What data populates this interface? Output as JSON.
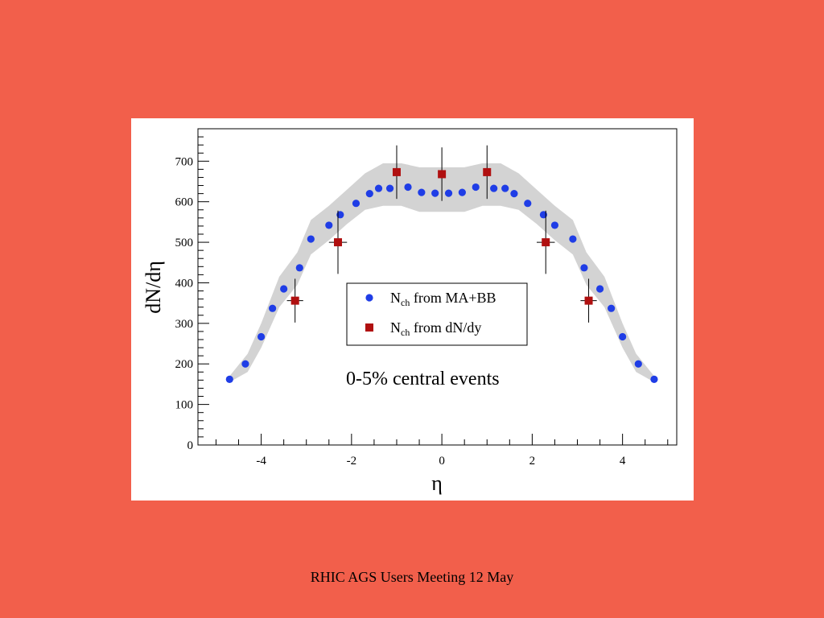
{
  "footer": {
    "text": "RHIC AGS Users Meeting 12 May"
  },
  "colors": {
    "background": "#f25f4b",
    "panel": "#ffffff",
    "band": "#d3d3d3",
    "series_ma_bb": "#1f3de6",
    "series_dndy": "#b01010"
  },
  "chart_data": {
    "type": "scatter",
    "title": "",
    "xlabel": "η",
    "ylabel": "dN/dη",
    "xlim": [
      -5.4,
      5.2
    ],
    "ylim": [
      0,
      780
    ],
    "xticks": [
      -4,
      -2,
      0,
      2,
      4
    ],
    "yticks": [
      0,
      100,
      200,
      300,
      400,
      500,
      600,
      700
    ],
    "grid": false,
    "annotation": "0-5% central events",
    "legend": {
      "position": "center",
      "entries": [
        {
          "main": "N",
          "sub": "ch",
          "rest": " from MA+BB",
          "marker": "circle"
        },
        {
          "main": "N",
          "sub": "ch",
          "rest": " from dN/dy",
          "marker": "square"
        }
      ]
    },
    "band": {
      "x": [
        -4.7,
        -4.3,
        -4.0,
        -3.6,
        -3.2,
        -2.9,
        -2.5,
        -2.1,
        -1.7,
        -1.3,
        -0.9,
        -0.5,
        -0.2,
        0.2,
        0.5,
        0.9,
        1.3,
        1.7,
        2.1,
        2.5,
        2.9,
        3.2,
        3.6,
        4.0,
        4.3,
        4.7
      ],
      "low": [
        155,
        180,
        240,
        340,
        395,
        470,
        505,
        545,
        580,
        590,
        590,
        575,
        575,
        575,
        575,
        590,
        590,
        580,
        545,
        505,
        470,
        395,
        340,
        240,
        180,
        155
      ],
      "high": [
        170,
        225,
        300,
        415,
        475,
        555,
        590,
        630,
        670,
        695,
        695,
        685,
        685,
        685,
        685,
        695,
        695,
        670,
        630,
        590,
        555,
        475,
        415,
        300,
        225,
        170
      ]
    },
    "series": [
      {
        "name": "N_ch from MA+BB",
        "marker": "circle",
        "x": [
          -4.7,
          -4.35,
          -4.0,
          -3.75,
          -3.5,
          -3.15,
          -2.9,
          -2.5,
          -2.25,
          -1.9,
          -1.6,
          -1.4,
          -1.15,
          -0.75,
          -0.45,
          -0.15,
          0.15,
          0.45,
          0.75,
          1.15,
          1.4,
          1.6,
          1.9,
          2.25,
          2.5,
          2.9,
          3.15,
          3.5,
          3.75,
          4.0,
          4.35,
          4.7
        ],
        "y": [
          162,
          200,
          267,
          337,
          385,
          437,
          508,
          542,
          568,
          596,
          620,
          633,
          633,
          636,
          623,
          621,
          621,
          623,
          636,
          633,
          633,
          620,
          596,
          568,
          542,
          508,
          437,
          385,
          337,
          267,
          200,
          162
        ]
      },
      {
        "name": "N_ch from dN/dy",
        "marker": "square",
        "x": [
          -3.25,
          -2.3,
          -1.0,
          0.0,
          1.0,
          2.3,
          3.25
        ],
        "y": [
          356,
          500,
          673,
          668,
          673,
          500,
          356
        ],
        "yerr": [
          54,
          78,
          66,
          66,
          66,
          78,
          54
        ],
        "xerr": [
          0.18,
          0.2,
          0.08,
          0.0,
          0.08,
          0.2,
          0.18
        ]
      }
    ]
  }
}
